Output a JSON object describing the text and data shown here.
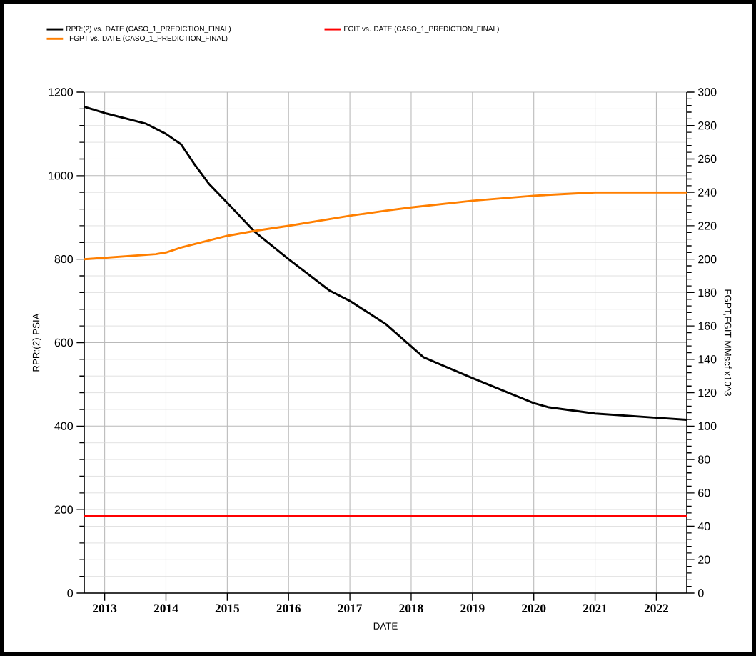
{
  "chart_data": {
    "type": "line",
    "xlabel": "DATE",
    "ylabel": "RPR:(2)   PSIA",
    "y2label": "FGPT,FGIT   MMscf   x10^3",
    "xlim": [
      "2012-09-01",
      "2022-07-01"
    ],
    "xticks": [
      "2013",
      "2014",
      "2015",
      "2016",
      "2017",
      "2018",
      "2019",
      "2020",
      "2021",
      "2022"
    ],
    "ylim": [
      0,
      1200
    ],
    "yticks": [
      0,
      200,
      400,
      600,
      800,
      1000,
      1200
    ],
    "y2lim": [
      0,
      300
    ],
    "y2ticks": [
      0,
      20,
      40,
      60,
      80,
      100,
      120,
      140,
      160,
      180,
      200,
      220,
      240,
      260,
      280,
      300
    ],
    "grid": true,
    "legend": "top",
    "series": [
      {
        "name": "RPR:(2) vs. DATE (CASO_1_PREDICTION_FINAL)",
        "color": "#000000",
        "x": [
          "2012-09-01",
          "2013-01-01",
          "2013-09-01",
          "2014-01-01",
          "2014-04-01",
          "2014-06-15",
          "2014-09-15",
          "2015-01-01",
          "2015-06-15",
          "2016-01-01",
          "2016-09-01",
          "2017-01-01",
          "2017-08-01",
          "2018-03-15",
          "2019-01-01",
          "2020-01-01",
          "2020-04-01",
          "2021-01-01",
          "2022-01-01",
          "2022-07-01"
        ],
        "values": [
          1165,
          1150,
          1125,
          1100,
          1075,
          1030,
          980,
          935,
          865,
          800,
          725,
          700,
          645,
          565,
          515,
          455,
          445,
          430,
          420,
          415
        ]
      },
      {
        "name": "FGIT vs. DATE (CASO_1_PREDICTION_FINAL)",
        "color": "#ff0000",
        "axis": "y2",
        "x": [
          "2012-09-01",
          "2022-07-01"
        ],
        "values": [
          46,
          46
        ]
      },
      {
        "name": "FGPT vs. DATE (CASO_1_PREDICTION_FINAL)",
        "color": "#ff7f00",
        "axis": "y2",
        "x": [
          "2012-09-01",
          "2013-11-01",
          "2014-01-01",
          "2014-04-01",
          "2015-01-01",
          "2015-06-15",
          "2016-01-01",
          "2017-01-01",
          "2017-08-01",
          "2018-01-01",
          "2019-01-01",
          "2020-01-01",
          "2021-01-01",
          "2022-07-01"
        ],
        "values": [
          200,
          203,
          204,
          207,
          214,
          217,
          220,
          226,
          229,
          231,
          235,
          238,
          240,
          240
        ]
      }
    ]
  }
}
